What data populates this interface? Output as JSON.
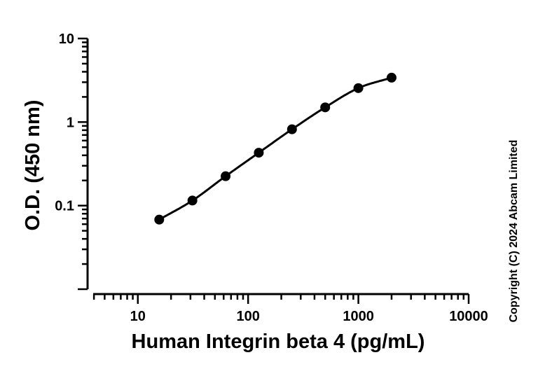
{
  "chart_data": {
    "type": "scatter",
    "xlabel": "Human Integrin beta 4 (pg/mL)",
    "ylabel": "O.D. (450 nm)",
    "xscale": "log",
    "yscale": "log",
    "xlim": [
      3.5,
      10000
    ],
    "ylim": [
      0.01,
      10
    ],
    "x_ticks": [
      10,
      100,
      1000,
      10000
    ],
    "x_tick_labels": [
      "10",
      "100",
      "1000",
      "10000"
    ],
    "y_ticks": [
      0.1,
      1,
      10
    ],
    "y_tick_labels": [
      "0.1",
      "1",
      "10"
    ],
    "grid": false,
    "series": [
      {
        "x": [
          15.63,
          31.25,
          62.5,
          125,
          250,
          500,
          1000,
          2000
        ],
        "y": [
          0.068,
          0.115,
          0.225,
          0.43,
          0.82,
          1.5,
          2.55,
          3.4
        ],
        "fit": "curve",
        "color": "#000000"
      }
    ],
    "annotations": [
      "Copyright (C) 2024 Abcam Limited"
    ]
  }
}
